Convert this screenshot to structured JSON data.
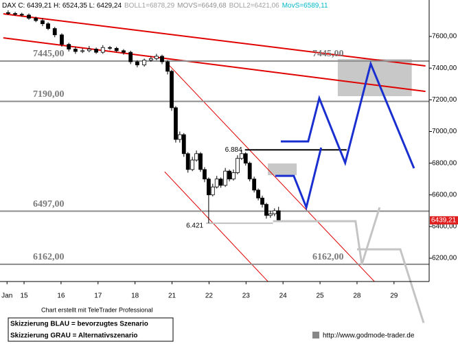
{
  "chart_data": {
    "type": "candlestick",
    "header": [
      {
        "text": "DAX C: 6439,21 H: 6524,35 L: 6429,24",
        "color": "#000000"
      },
      {
        "text": "BOLL1=6878,29",
        "color": "#a0a0a0"
      },
      {
        "text": "MOVS=6649,68",
        "color": "#909090"
      },
      {
        "text": "BOLL2=6421,06",
        "color": "#a0a0a0"
      },
      {
        "text": "MovS=6589,11",
        "color": "#00b8c8"
      }
    ],
    "x": [
      -0.43,
      -0.24,
      -0.06,
      0.13,
      0.32,
      0.5,
      0.65,
      0.83,
      1.02,
      1.21,
      1.39,
      1.58,
      1.76,
      1.95,
      2.13,
      2.32,
      2.5,
      2.69,
      2.88,
      3.06,
      3.25,
      3.43,
      3.58,
      3.73,
      3.88,
      3.99,
      4.1,
      4.21,
      4.32,
      4.43,
      4.55,
      4.66,
      4.77,
      4.88,
      4.99,
      5.1,
      5.21,
      5.32,
      5.44,
      5.55,
      5.66,
      5.77,
      5.88,
      5.99,
      6.1,
      6.22,
      6.33,
      6.44,
      6.55,
      6.66,
      6.77,
      6.88
    ],
    "open": [
      7750,
      7745,
      7740,
      7735,
      7715,
      7700,
      7680,
      7650,
      7610,
      7550,
      7520,
      7505,
      7510,
      7520,
      7500,
      7530,
      7525,
      7510,
      7500,
      7440,
      7420,
      7450,
      7460,
      7475,
      7440,
      7380,
      7150,
      6950,
      6980,
      6860,
      6760,
      6820,
      6860,
      6760,
      6700,
      6600,
      6650,
      6700,
      6660,
      6750,
      6700,
      6740,
      6830,
      6860,
      6800,
      6700,
      6630,
      6580,
      6540,
      6470,
      6480,
      6500
    ],
    "high": [
      7765,
      7755,
      7750,
      7745,
      7725,
      7715,
      7690,
      7660,
      7620,
      7560,
      7535,
      7525,
      7540,
      7530,
      7545,
      7540,
      7535,
      7520,
      7510,
      7450,
      7460,
      7475,
      7490,
      7485,
      7450,
      7390,
      7160,
      7000,
      6990,
      6870,
      6840,
      6880,
      6870,
      6775,
      6710,
      6670,
      6720,
      6710,
      6770,
      6760,
      6760,
      6850,
      6884,
      6870,
      6810,
      6715,
      6640,
      6595,
      6550,
      6500,
      6515,
      6524.35
    ],
    "low": [
      7735,
      7730,
      7725,
      7705,
      7690,
      7665,
      7640,
      7595,
      7535,
      7505,
      7490,
      7495,
      7500,
      7490,
      7490,
      7515,
      7500,
      7485,
      7425,
      7405,
      7410,
      7440,
      7450,
      7425,
      7360,
      7130,
      6930,
      6930,
      6840,
      6740,
      6750,
      6810,
      6745,
      6680,
      6421,
      6590,
      6640,
      6645,
      6650,
      6685,
      6690,
      6730,
      6820,
      6785,
      6685,
      6615,
      6565,
      6520,
      6450,
      6455,
      6465,
      6429.24
    ],
    "close": [
      7745,
      7740,
      7735,
      7715,
      7700,
      7680,
      7650,
      7610,
      7550,
      7520,
      7505,
      7510,
      7520,
      7500,
      7530,
      7525,
      7510,
      7500,
      7440,
      7420,
      7450,
      7460,
      7475,
      7440,
      7380,
      7150,
      6950,
      6980,
      6860,
      6760,
      6820,
      6860,
      6760,
      6700,
      6600,
      6650,
      6700,
      6660,
      6750,
      6700,
      6740,
      6830,
      6860,
      6800,
      6700,
      6630,
      6580,
      6540,
      6470,
      6480,
      6500,
      6439.21
    ],
    "up_color": "#ffffff",
    "down_color": "#000000",
    "xlim": [
      -0.65,
      10.95
    ],
    "xticks": [
      {
        "value": -0.46,
        "label": "Jan"
      },
      {
        "value": 0,
        "label": "15"
      },
      {
        "value": 1,
        "label": "16"
      },
      {
        "value": 2,
        "label": "17"
      },
      {
        "value": 3,
        "label": "18"
      },
      {
        "value": 4,
        "label": "21"
      },
      {
        "value": 5,
        "label": "22"
      },
      {
        "value": 6,
        "label": "23"
      },
      {
        "value": 7,
        "label": "24"
      },
      {
        "value": 8,
        "label": "25"
      },
      {
        "value": 9,
        "label": "28"
      },
      {
        "value": 10,
        "label": "29"
      }
    ],
    "ylim": [
      6053,
      7830
    ],
    "yticks": [
      {
        "value": 6200,
        "label": "6200,00"
      },
      {
        "value": 6400,
        "label": "6400,00"
      },
      {
        "value": 6600,
        "label": "6600,00"
      },
      {
        "value": 6800,
        "label": "6800,00"
      },
      {
        "value": 7000,
        "label": "7000,00"
      },
      {
        "value": 7200,
        "label": "7200,00"
      },
      {
        "value": 7400,
        "label": "7400,00"
      },
      {
        "value": 7600,
        "label": "7600,00"
      }
    ],
    "levels": [
      {
        "value": 7445,
        "label": "7445,00",
        "sides": [
          "left",
          "right"
        ]
      },
      {
        "value": 7190,
        "label": "7190,00",
        "sides": [
          "left"
        ]
      },
      {
        "value": 6497,
        "label": "6497,00",
        "sides": [
          "left"
        ]
      },
      {
        "value": 6162,
        "label": "6162,00",
        "sides": [
          "left",
          "right"
        ]
      }
    ],
    "level_color": "#8c8c8c",
    "trendlines": [
      {
        "color": "#e00000",
        "width": 2,
        "x": [
          -0.56,
          10.85
        ],
        "y": [
          7743,
          7414
        ]
      },
      {
        "color": "#e00000",
        "width": 2,
        "x": [
          -0.56,
          10.85
        ],
        "y": [
          7591,
          7253
        ]
      },
      {
        "color": "#e00000",
        "width": 1,
        "x": [
          3.8,
          9.65
        ],
        "y": [
          7448,
          6009
        ]
      },
      {
        "color": "#e00000",
        "width": 1,
        "x": [
          3.8,
          6.77
        ],
        "y": [
          6746,
          6009
        ]
      }
    ],
    "zones": [
      {
        "color": "#c8c8c8",
        "x": [
          8.48,
          10.48
        ],
        "y": [
          7457,
          7223
        ]
      },
      {
        "color": "#c8c8c8",
        "x": [
          6.59,
          7.37
        ],
        "y": [
          6798,
          6724
        ]
      }
    ],
    "marks": [
      {
        "label": "6.884",
        "value": 6884,
        "color": "#000000",
        "x": [
          5.97,
          8.72
        ]
      },
      {
        "label": "6.421",
        "value": 6421,
        "color": "#c0c0c0",
        "x": [
          4.92,
          6.73
        ]
      }
    ],
    "scenarios": [
      {
        "color": "#1a2fd0",
        "x": [
          6.94,
          7.68,
          7.98,
          8.68,
          9.37,
          10.54
        ],
        "y": [
          6937,
          6937,
          7210,
          6802,
          7427,
          6768
        ]
      },
      {
        "color": "#1a2fd0",
        "x": [
          6.79,
          7.29,
          7.63,
          8.03
        ],
        "y": [
          6720,
          6720,
          6521,
          6898
        ]
      },
      {
        "color": "#c4c4c4",
        "x": [
          6.73,
          8.96,
          9.13,
          9.61
        ],
        "y": [
          6434,
          6434,
          6161,
          6521
        ]
      },
      {
        "color": "#c4c4c4",
        "x": [
          9.0,
          10.17,
          10.8
        ],
        "y": [
          6256,
          6256,
          5792
        ]
      }
    ],
    "last_price": {
      "value": 6439.21,
      "label": "6439,21",
      "color": "#e02020"
    },
    "credit": "Chart erstellt mit TeleTrader Professional",
    "legend_lines": [
      "Skizzierung BLAU = bevorzugtes Szenario",
      "Skizzierung GRAU = Alternativszenario"
    ],
    "url": "http://www.godmode-trader.de"
  }
}
